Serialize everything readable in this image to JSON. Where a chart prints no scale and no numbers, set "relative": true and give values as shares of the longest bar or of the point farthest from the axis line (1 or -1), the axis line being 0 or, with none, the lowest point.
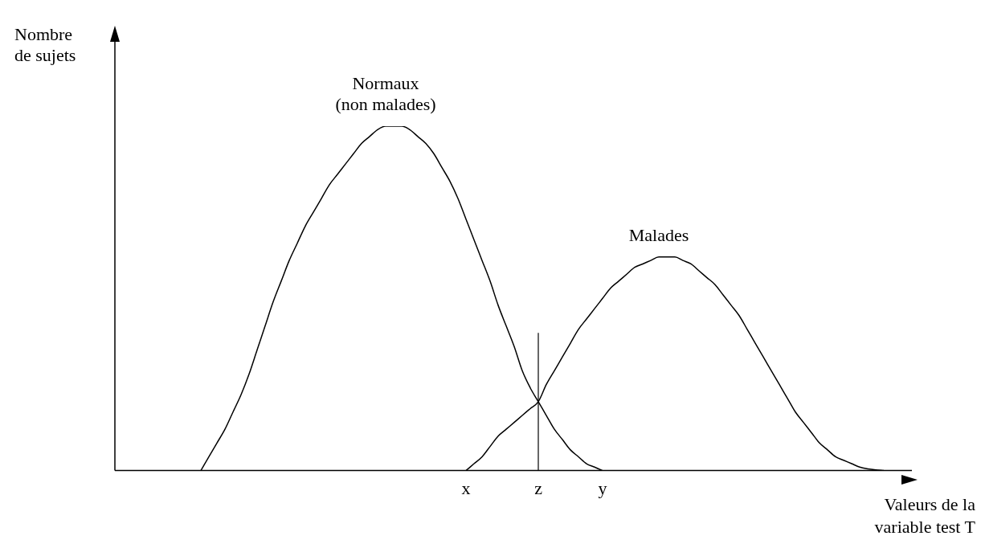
{
  "chart_data": {
    "type": "line",
    "relative": true,
    "ylabel": "Nombre de sujets",
    "xlabel": "Valeurs de la variable test T",
    "categories": [
      null,
      null,
      null,
      null,
      null,
      null,
      null,
      null,
      null,
      null,
      null,
      null,
      null,
      null,
      null,
      null,
      null,
      null,
      null,
      null,
      null,
      null,
      null,
      null,
      null,
      null,
      null,
      null,
      null,
      null,
      null,
      null,
      null,
      null,
      null,
      null,
      null,
      null,
      null,
      null,
      null,
      null,
      null,
      "x",
      null,
      null,
      null,
      null,
      null,
      null,
      null,
      null,
      "z",
      null,
      null,
      null,
      null,
      null,
      null,
      null,
      "y",
      null,
      null,
      null,
      null,
      null,
      null,
      null,
      null,
      null,
      null,
      null,
      null,
      null,
      null,
      null,
      null,
      null,
      null,
      null,
      null,
      null,
      null,
      null,
      null,
      null,
      null,
      null,
      null,
      null,
      null,
      null,
      null,
      null,
      null,
      null
    ],
    "series": [
      {
        "name": "Normaux (non malades)",
        "color": "#000000",
        "values": [
          null,
          null,
          null,
          null,
          null,
          null,
          null,
          null,
          null,
          null,
          0,
          0.04,
          0.08,
          0.12,
          0.17,
          0.22,
          0.28,
          0.35,
          0.42,
          0.49,
          0.55,
          0.61,
          0.66,
          0.71,
          0.75,
          0.79,
          0.83,
          0.86,
          0.89,
          0.92,
          0.95,
          0.97,
          0.99,
          1,
          1,
          1,
          0.99,
          0.97,
          0.95,
          0.92,
          0.88,
          0.84,
          0.79,
          0.73,
          0.67,
          0.61,
          0.55,
          0.48,
          0.42,
          0.36,
          0.29,
          0.24,
          0.2,
          0.16,
          0.12,
          0.09,
          0.06,
          0.04,
          0.02,
          0.01,
          0,
          null,
          null,
          null,
          null,
          null,
          null,
          null,
          null,
          null,
          null,
          null,
          null,
          null,
          null,
          null,
          null,
          null,
          null,
          null,
          null,
          null,
          null,
          null,
          null,
          null,
          null,
          null,
          null,
          null,
          null,
          null,
          null,
          null,
          null,
          null
        ]
      },
      {
        "name": "Malades",
        "color": "#000000",
        "values": [
          null,
          null,
          null,
          null,
          null,
          null,
          null,
          null,
          null,
          null,
          null,
          null,
          null,
          null,
          null,
          null,
          null,
          null,
          null,
          null,
          null,
          null,
          null,
          null,
          null,
          null,
          null,
          null,
          null,
          null,
          null,
          null,
          null,
          null,
          null,
          null,
          null,
          null,
          null,
          null,
          null,
          null,
          null,
          0,
          0.02,
          0.04,
          0.07,
          0.1,
          0.12,
          0.14,
          0.16,
          0.18,
          0.2,
          0.25,
          0.29,
          0.33,
          0.37,
          0.41,
          0.44,
          0.47,
          0.5,
          0.53,
          0.55,
          0.57,
          0.59,
          0.6,
          0.61,
          0.62,
          0.62,
          0.62,
          0.61,
          0.6,
          0.58,
          0.56,
          0.54,
          0.51,
          0.48,
          0.45,
          0.41,
          0.37,
          0.33,
          0.29,
          0.25,
          0.21,
          0.17,
          0.14,
          0.11,
          0.08,
          0.06,
          0.04,
          0.03,
          0.02,
          0.01,
          0.005,
          0.002,
          0
        ]
      }
    ],
    "ref_lines": [
      {
        "axis": "x",
        "value": "z"
      }
    ],
    "legend": false,
    "grid": false,
    "marker": "none",
    "line_style": "solid"
  }
}
